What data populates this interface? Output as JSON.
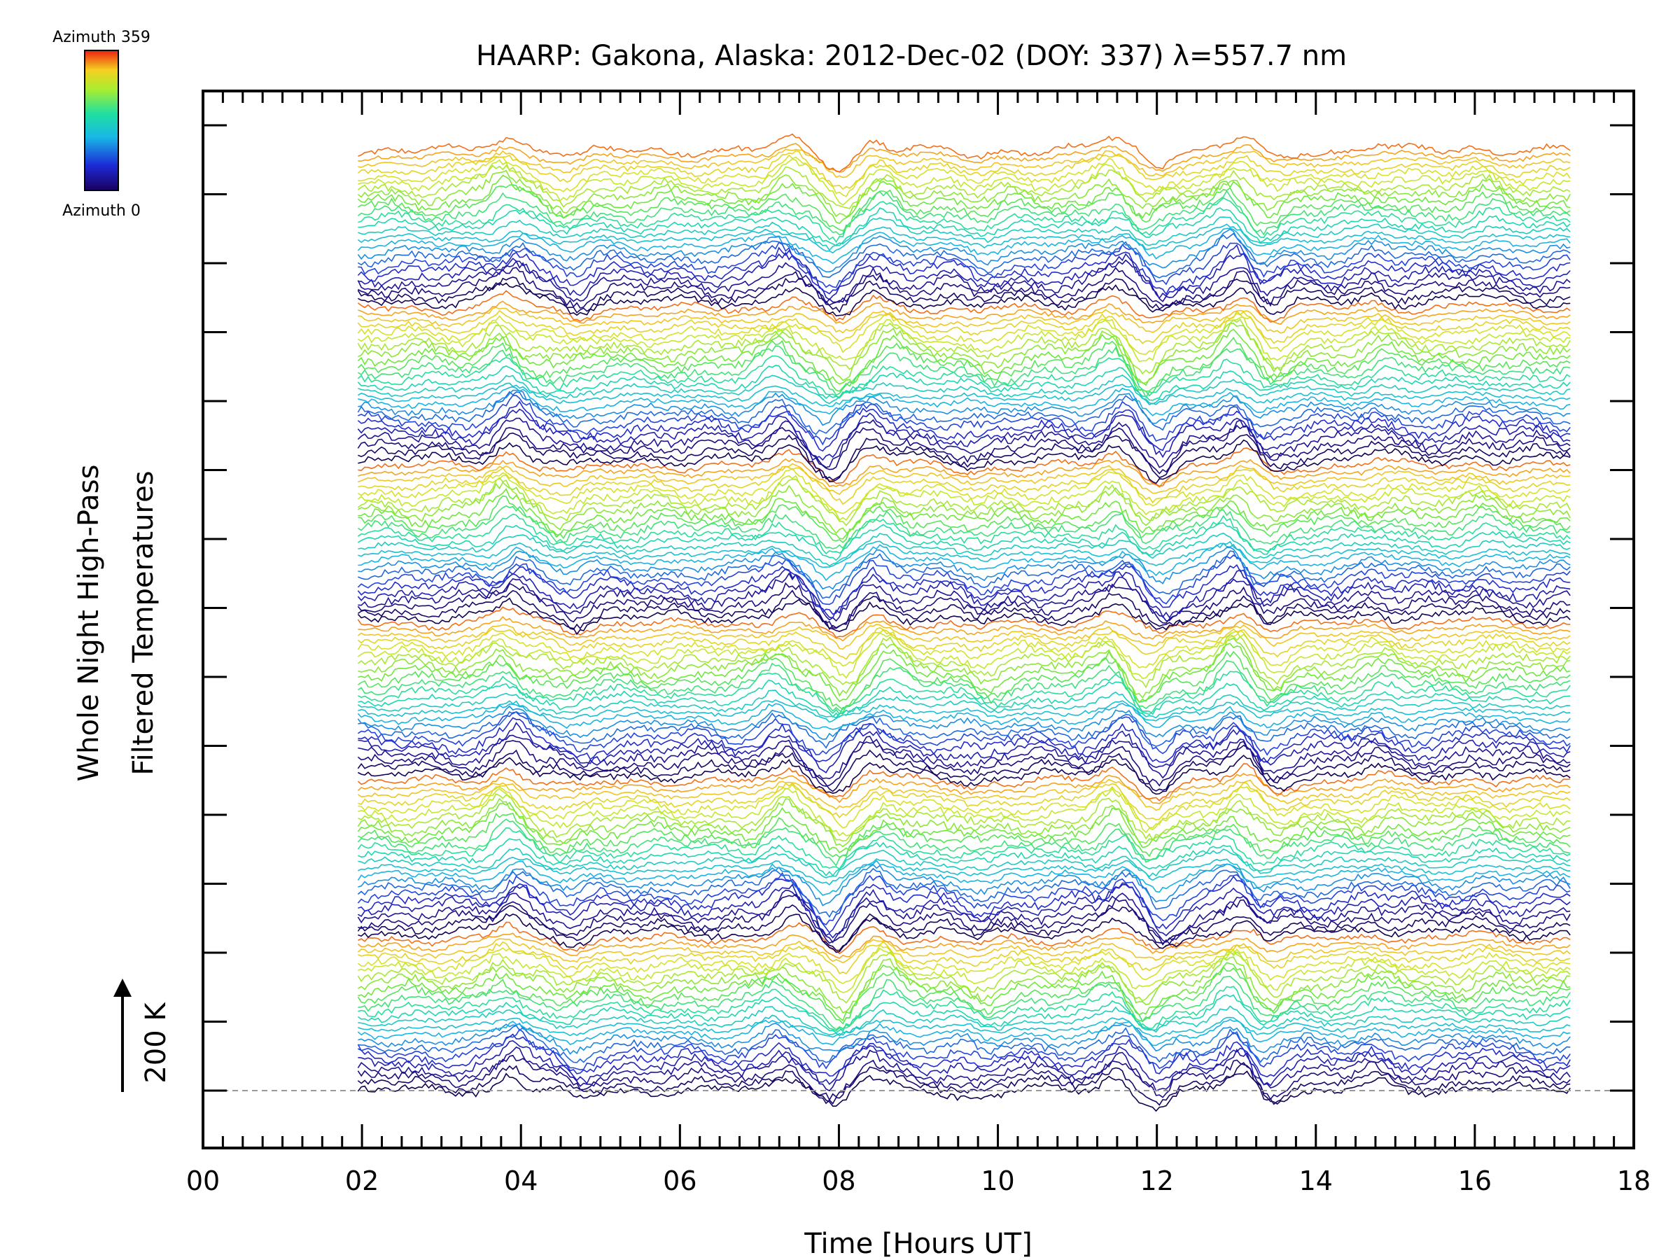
{
  "chart_data": {
    "type": "line",
    "title": "HAARP: Gakona,  Alaska: 2012-Dec-02 (DOY: 337) λ=557.7 nm",
    "xlabel": "Time [Hours UT]",
    "ylabel_line1": "Whole Night High-Pass",
    "ylabel_line2": "Filtered Temperatures",
    "scale_bar": "200 K",
    "xlim": [
      0,
      18
    ],
    "x_ticks": [
      "00",
      "02",
      "04",
      "06",
      "08",
      "10",
      "12",
      "14",
      "16",
      "18"
    ],
    "x_tick_values": [
      0,
      2,
      4,
      6,
      8,
      10,
      12,
      14,
      16,
      18
    ],
    "data_range_hours": [
      1.95,
      17.2
    ],
    "trace_count": 150,
    "traces_per_cycle": 25,
    "colorbar": {
      "top_label": "Azimuth 359",
      "bottom_label": "Azimuth 0"
    },
    "grid": false,
    "features": [
      {
        "t": 3.85,
        "amp": 1.0
      },
      {
        "t": 4.6,
        "amp": -0.5
      },
      {
        "t": 7.3,
        "amp": 0.9
      },
      {
        "t": 7.95,
        "amp": -1.1
      },
      {
        "t": 8.5,
        "amp": 0.8
      },
      {
        "t": 9.8,
        "amp": -0.4
      },
      {
        "t": 11.5,
        "amp": 0.9
      },
      {
        "t": 11.95,
        "amp": -1.0
      },
      {
        "t": 13.0,
        "amp": 1.0
      },
      {
        "t": 13.4,
        "amp": -0.7
      },
      {
        "t": 14.8,
        "amp": 0.4
      },
      {
        "t": 16.1,
        "amp": 0.3
      }
    ]
  }
}
